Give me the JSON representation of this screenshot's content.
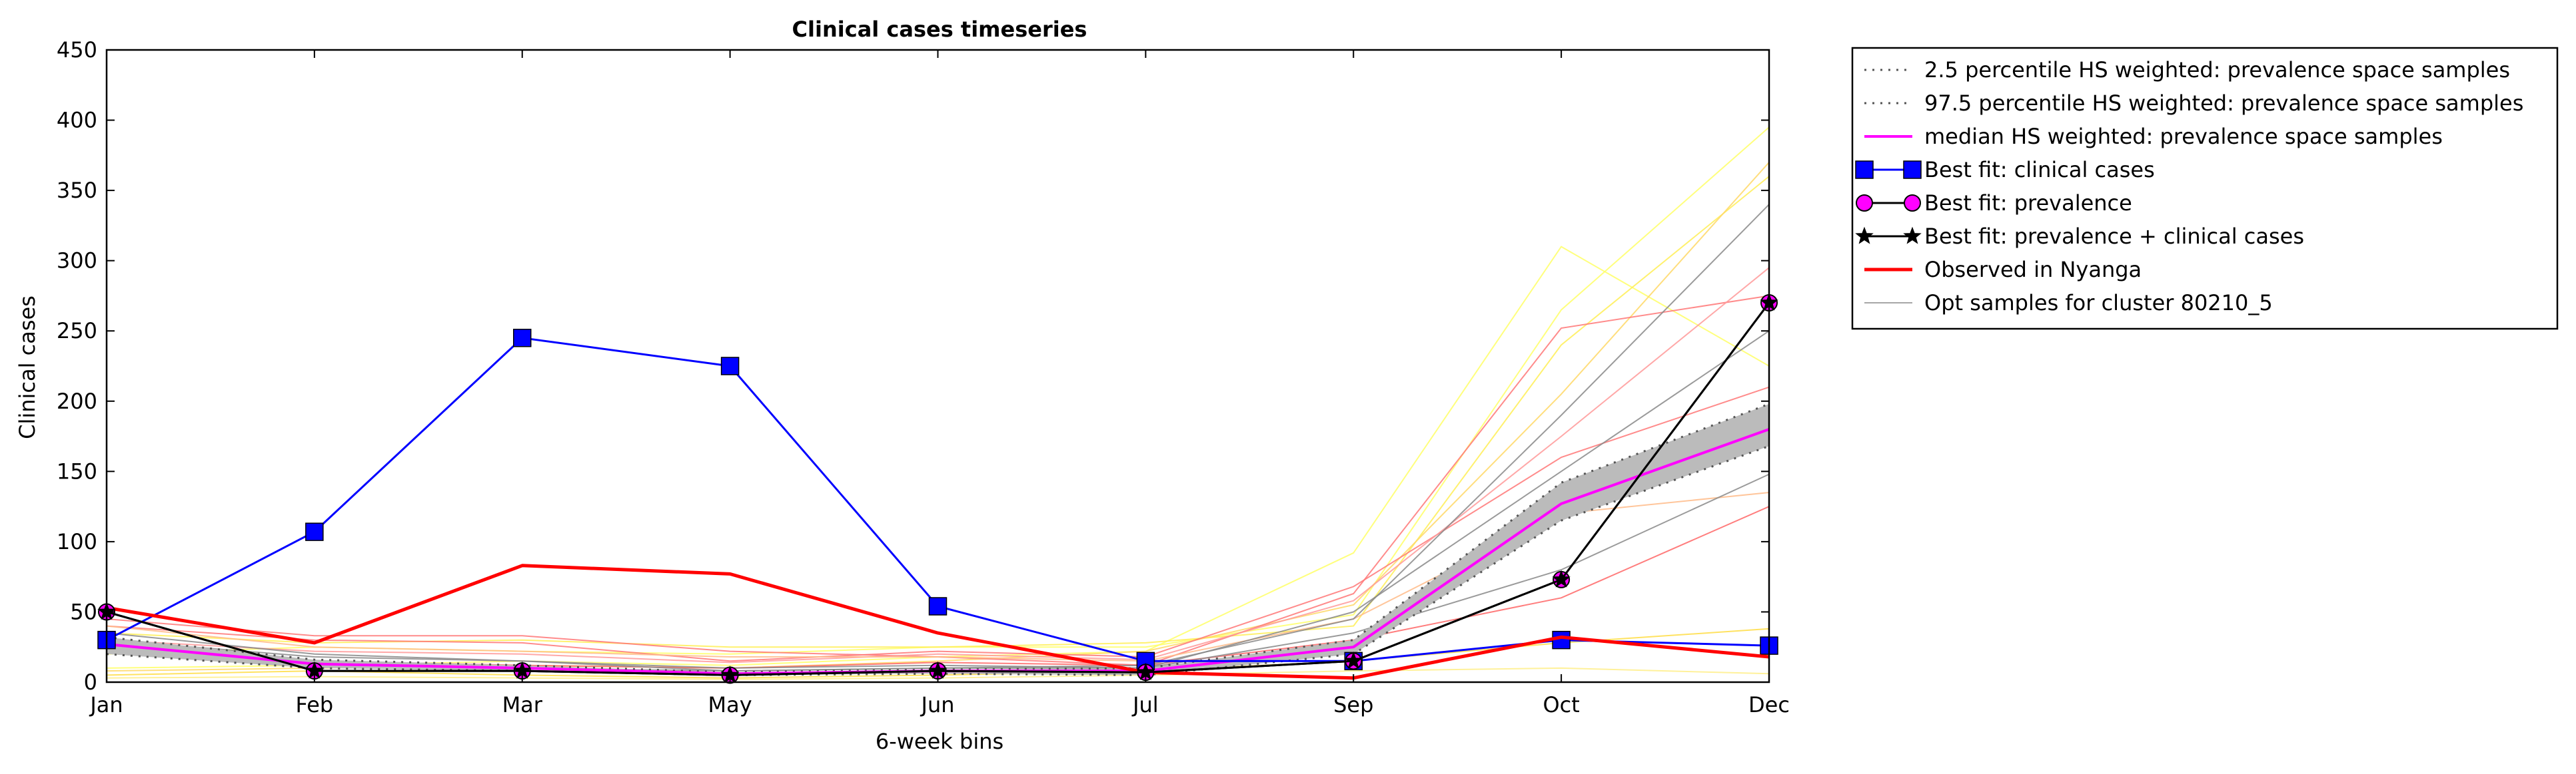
{
  "chart_data": {
    "type": "line",
    "title": "Clinical cases timeseries",
    "xlabel": "6-week bins",
    "ylabel": "Clinical cases",
    "categories": [
      "Jan",
      "Feb",
      "Mar",
      "May",
      "Jun",
      "Jul",
      "Sep",
      "Oct",
      "Dec"
    ],
    "yticks": [
      0,
      50,
      100,
      150,
      200,
      250,
      300,
      350,
      400,
      450
    ],
    "ylim": [
      0,
      450
    ],
    "grid": false,
    "legend_position": "outside-right",
    "band": {
      "lower": [
        20,
        10,
        8,
        5,
        6,
        5,
        20,
        115,
        168
      ],
      "upper": [
        32,
        16,
        12,
        7,
        9,
        10,
        30,
        142,
        198
      ],
      "color": "#bbbbbb"
    },
    "series": [
      {
        "name": "2.5 percentile HS weighted: prevalence space samples",
        "style": "dotted",
        "color": "#555555",
        "values": [
          20,
          10,
          8,
          5,
          6,
          5,
          20,
          115,
          168
        ]
      },
      {
        "name": "97.5 percentile HS weighted: prevalence space samples",
        "style": "dotted",
        "color": "#555555",
        "values": [
          32,
          16,
          12,
          7,
          9,
          10,
          30,
          142,
          198
        ]
      },
      {
        "name": "median HS weighted: prevalence space samples",
        "style": "solid",
        "color": "#ff00ff",
        "width": 4,
        "values": [
          27,
          13,
          10,
          6,
          8,
          8,
          25,
          127,
          180
        ]
      },
      {
        "name": "Best fit: clinical cases",
        "style": "solid",
        "color": "#0000ff",
        "marker": "square",
        "values": [
          30,
          107,
          245,
          225,
          54,
          15,
          15,
          30,
          26
        ]
      },
      {
        "name": "Best fit: prevalence",
        "style": "solid",
        "color": "#000000",
        "marker": "circle",
        "marker_fill": "#ff00ff",
        "values": [
          50,
          8,
          8,
          5,
          8,
          7,
          15,
          73,
          270
        ]
      },
      {
        "name": "Best fit: prevalence + clinical cases",
        "style": "solid",
        "color": "#000000",
        "marker": "star",
        "values": [
          50,
          8,
          8,
          5,
          8,
          7,
          15,
          73,
          270
        ]
      },
      {
        "name": "Observed in Nyanga",
        "style": "solid",
        "color": "#ff0000",
        "width": 5,
        "values": [
          53,
          28,
          83,
          77,
          35,
          7,
          3,
          32,
          18
        ]
      },
      {
        "name": "Opt samples for cluster 80210_5",
        "style": "solid",
        "color": "#888888",
        "width": 1.5,
        "values": [
          30,
          18,
          15,
          8,
          10,
          12,
          45,
          190,
          340
        ]
      }
    ],
    "samples": [
      {
        "color": "#ffff66",
        "values": [
          10,
          12,
          15,
          12,
          18,
          22,
          92,
          310,
          225
        ]
      },
      {
        "color": "#ffff66",
        "values": [
          20,
          25,
          22,
          20,
          25,
          25,
          48,
          265,
          395
        ]
      },
      {
        "color": "#ffee55",
        "values": [
          35,
          28,
          30,
          25,
          25,
          28,
          40,
          240,
          360
        ]
      },
      {
        "color": "#ffd866",
        "values": [
          8,
          10,
          12,
          10,
          15,
          22,
          55,
          205,
          370
        ]
      },
      {
        "color": "#ff7777",
        "values": [
          45,
          33,
          33,
          22,
          18,
          12,
          63,
          252,
          275
        ]
      },
      {
        "color": "#ff7777",
        "values": [
          40,
          30,
          28,
          15,
          22,
          18,
          68,
          160,
          210
        ]
      },
      {
        "color": "#ff9999",
        "values": [
          30,
          22,
          20,
          14,
          20,
          16,
          58,
          175,
          295
        ]
      },
      {
        "color": "#ff6666",
        "values": [
          25,
          15,
          12,
          10,
          14,
          12,
          30,
          60,
          125
        ]
      },
      {
        "color": "#ffbb88",
        "values": [
          40,
          25,
          22,
          18,
          18,
          15,
          45,
          120,
          135
        ]
      },
      {
        "color": "#888888",
        "values": [
          35,
          20,
          15,
          10,
          12,
          10,
          50,
          150,
          250
        ]
      },
      {
        "color": "#888888",
        "values": [
          25,
          12,
          10,
          8,
          10,
          10,
          35,
          80,
          148
        ]
      },
      {
        "color": "#888888",
        "values": [
          30,
          18,
          15,
          8,
          10,
          12,
          45,
          190,
          340
        ]
      },
      {
        "color": "#ffdd44",
        "values": [
          5,
          8,
          5,
          3,
          5,
          8,
          15,
          28,
          38
        ]
      },
      {
        "color": "#ffee88",
        "values": [
          3,
          4,
          3,
          2,
          3,
          5,
          8,
          10,
          6
        ]
      }
    ]
  }
}
